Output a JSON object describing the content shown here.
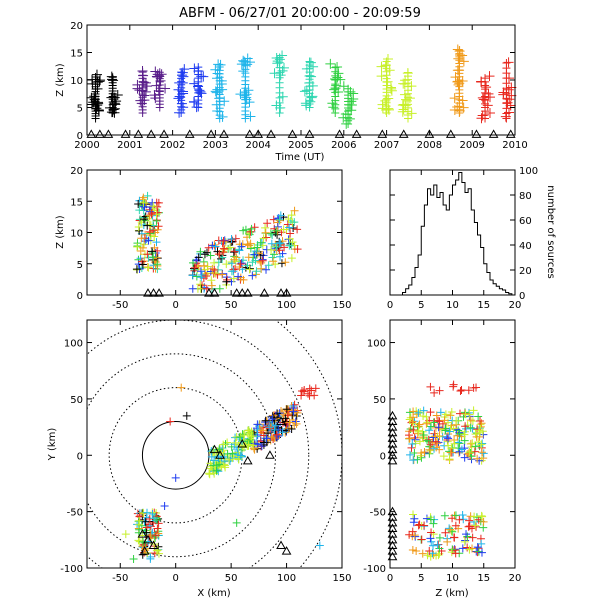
{
  "title": "ABFM - 06/27/01 20:00:00 - 20:09:59",
  "colors": {
    "c0": "#000000",
    "c1": "#5a1f8a",
    "c2": "#1f3cf0",
    "c3": "#1eb4ea",
    "c4": "#2ed6b0",
    "c5": "#2fd040",
    "c6": "#c8f02a",
    "c7": "#f09a1a",
    "c8": "#e8281e"
  },
  "chart_data": [
    {
      "type": "scatter",
      "panel": "time-height",
      "xlabel": "Time (UT)",
      "ylabel": "Z (km)",
      "xlim": [
        2000,
        2010
      ],
      "ylim": [
        0,
        20
      ],
      "xticks": [
        "2000",
        "2001",
        "2002",
        "2003",
        "2004",
        "2005",
        "2006",
        "2007",
        "2008",
        "2009",
        "2010"
      ],
      "yticks": [
        "0",
        "5",
        "10",
        "15",
        "20"
      ],
      "time_color_bands": [
        {
          "start": 2000,
          "end": 2001,
          "color": "c0"
        },
        {
          "start": 2001,
          "end": 2002,
          "color": "c1"
        },
        {
          "start": 2002,
          "end": 2003,
          "color": "c2"
        },
        {
          "start": 2003,
          "end": 2004,
          "color": "c3"
        },
        {
          "start": 2004,
          "end": 2005.5,
          "color": "c4"
        },
        {
          "start": 2005.5,
          "end": 2006,
          "color": "c5"
        },
        {
          "start": 2006,
          "end": 2007.8,
          "color": "c6"
        },
        {
          "start": 2007.8,
          "end": 2009,
          "color": "c7"
        },
        {
          "start": 2009,
          "end": 2010,
          "color": "c8"
        }
      ],
      "source_clusters": [
        {
          "t": 2000.2,
          "z": [
            3,
            11
          ],
          "n": 18,
          "color": "c0"
        },
        {
          "t": 2000.6,
          "z": [
            4,
            11
          ],
          "n": 14,
          "color": "c0"
        },
        {
          "t": 2001.3,
          "z": [
            4,
            12
          ],
          "n": 14,
          "color": "c1"
        },
        {
          "t": 2001.7,
          "z": [
            5,
            12
          ],
          "n": 12,
          "color": "c1"
        },
        {
          "t": 2002.2,
          "z": [
            4,
            12
          ],
          "n": 14,
          "color": "c2"
        },
        {
          "t": 2002.6,
          "z": [
            5,
            13
          ],
          "n": 12,
          "color": "c2"
        },
        {
          "t": 2003.1,
          "z": [
            3,
            13
          ],
          "n": 16,
          "color": "c3"
        },
        {
          "t": 2003.7,
          "z": [
            3,
            14
          ],
          "n": 16,
          "color": "c3"
        },
        {
          "t": 2004.5,
          "z": [
            4,
            15
          ],
          "n": 12,
          "color": "c4"
        },
        {
          "t": 2005.2,
          "z": [
            5,
            14
          ],
          "n": 14,
          "color": "c4"
        },
        {
          "t": 2005.8,
          "z": [
            4,
            13
          ],
          "n": 12,
          "color": "c5"
        },
        {
          "t": 2006.1,
          "z": [
            2,
            9
          ],
          "n": 12,
          "color": "c5"
        },
        {
          "t": 2007.0,
          "z": [
            4,
            14
          ],
          "n": 16,
          "color": "c6"
        },
        {
          "t": 2007.5,
          "z": [
            3,
            12
          ],
          "n": 14,
          "color": "c6"
        },
        {
          "t": 2008.7,
          "z": [
            4,
            16
          ],
          "n": 20,
          "color": "c7"
        },
        {
          "t": 2009.3,
          "z": [
            3,
            11
          ],
          "n": 12,
          "color": "c8"
        },
        {
          "t": 2009.8,
          "z": [
            3,
            14
          ],
          "n": 12,
          "color": "c8"
        }
      ],
      "station_triangles_t": [
        2000.1,
        2000.3,
        2000.5,
        2000.9,
        2001.2,
        2001.5,
        2001.8,
        2002.4,
        2002.9,
        2003.2,
        2003.8,
        2004.0,
        2004.3,
        2004.8,
        2005.2,
        2005.9,
        2006.3,
        2006.9,
        2007.4,
        2008.0,
        2008.5,
        2009.1,
        2009.5,
        2009.9
      ]
    },
    {
      "type": "scatter",
      "panel": "x-z",
      "xlabel": "",
      "ylabel": "Z (km)",
      "xlim": [
        -80,
        150
      ],
      "ylim": [
        0,
        20
      ],
      "xticks": [
        "-50",
        "0",
        "50",
        "100",
        "150"
      ],
      "yticks": [
        "0",
        "5",
        "10",
        "15",
        "20"
      ],
      "clusters": [
        {
          "x": [
            -35,
            -15
          ],
          "z": [
            4,
            16
          ]
        },
        {
          "x": [
            15,
            110
          ],
          "z": [
            2,
            13
          ]
        }
      ],
      "station_triangles_x": [
        -25,
        -20,
        -15,
        30,
        35,
        55,
        60,
        65,
        80,
        95,
        100
      ]
    },
    {
      "type": "bar",
      "panel": "height-histogram",
      "xlabel": "",
      "ylabel": "number of sources",
      "xlim": [
        0,
        20
      ],
      "ylim": [
        0,
        100
      ],
      "xticks": [
        "0",
        "5",
        "10",
        "15",
        "20"
      ],
      "yticks": [
        "0",
        "20",
        "40",
        "60",
        "80",
        "100"
      ],
      "bin_width_km": 0.5,
      "values": [
        0,
        0,
        0,
        0,
        2,
        5,
        8,
        14,
        22,
        32,
        55,
        72,
        85,
        80,
        88,
        78,
        82,
        72,
        68,
        80,
        88,
        92,
        98,
        90,
        82,
        85,
        68,
        58,
        48,
        38,
        25,
        18,
        12,
        9,
        7,
        5,
        4,
        2,
        1,
        0
      ]
    },
    {
      "type": "scatter",
      "panel": "plan-view",
      "xlabel": "X (km)",
      "ylabel": "Y (km)",
      "xlim": [
        -80,
        150
      ],
      "ylim": [
        -100,
        120
      ],
      "xticks": [
        "-50",
        "0",
        "50",
        "100",
        "150"
      ],
      "yticks": [
        "-100",
        "-50",
        "0",
        "50",
        "100"
      ],
      "range_rings_km": [
        30,
        60,
        90,
        120,
        150
      ],
      "clusters": [
        {
          "x": [
            30,
            110
          ],
          "y": [
            -10,
            45
          ]
        },
        {
          "x": [
            -35,
            -15
          ],
          "y": [
            -90,
            -50
          ]
        }
      ],
      "station_triangles": [
        [
          -25,
          -75
        ],
        [
          -20,
          -80
        ],
        [
          -30,
          -70
        ],
        [
          -28,
          -85
        ],
        [
          35,
          5
        ],
        [
          40,
          0
        ],
        [
          65,
          -5
        ],
        [
          60,
          10
        ],
        [
          85,
          0
        ],
        [
          95,
          30
        ],
        [
          100,
          -85
        ],
        [
          95,
          -80
        ]
      ]
    },
    {
      "type": "scatter",
      "panel": "z-y",
      "xlabel": "Z (km)",
      "ylabel": "",
      "xlim": [
        0,
        20
      ],
      "ylim": [
        -100,
        120
      ],
      "xticks": [
        "0",
        "5",
        "10",
        "15",
        "20"
      ],
      "yticks": [
        "-100",
        "-50",
        "0",
        "50",
        "100"
      ],
      "clusters": [
        {
          "z": [
            3,
            15
          ],
          "y": [
            -5,
            55
          ]
        },
        {
          "z": [
            3,
            15
          ],
          "y": [
            -90,
            -50
          ]
        }
      ]
    }
  ]
}
